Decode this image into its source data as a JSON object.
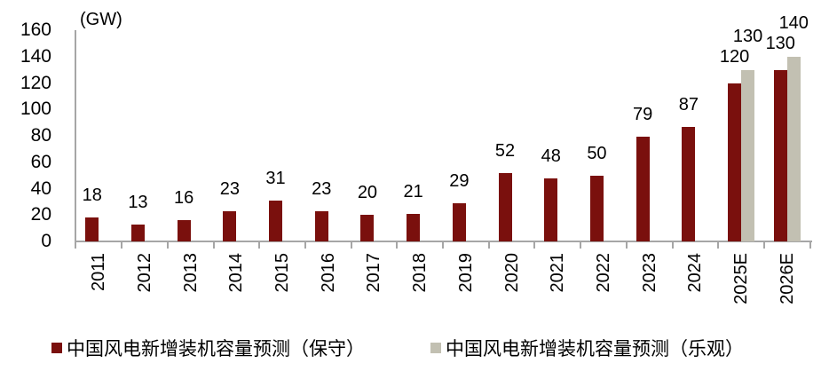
{
  "chart_data": {
    "type": "bar",
    "unit_label": "(GW)",
    "categories": [
      "2011",
      "2012",
      "2013",
      "2014",
      "2015",
      "2016",
      "2017",
      "2018",
      "2019",
      "2020",
      "2021",
      "2022",
      "2023",
      "2024",
      "2025E",
      "2026E"
    ],
    "series": [
      {
        "name": "中国风电新增装机容量预测（保守）",
        "color": "#7A100D",
        "values": [
          18,
          13,
          16,
          23,
          31,
          23,
          20,
          21,
          29,
          52,
          48,
          50,
          79,
          87,
          120,
          130
        ]
      },
      {
        "name": "中国风电新增装机容量预测（乐观）",
        "color": "#C2C0B2",
        "values": [
          null,
          null,
          null,
          null,
          null,
          null,
          null,
          null,
          null,
          null,
          null,
          null,
          null,
          null,
          130,
          140
        ]
      }
    ],
    "ylim": [
      0,
      160
    ],
    "yticks": [
      0,
      20,
      40,
      60,
      80,
      100,
      120,
      140,
      160
    ],
    "grid": false,
    "legend_position": "bottom",
    "axis_color": "#A6A6A6",
    "text_color": "#000000"
  }
}
